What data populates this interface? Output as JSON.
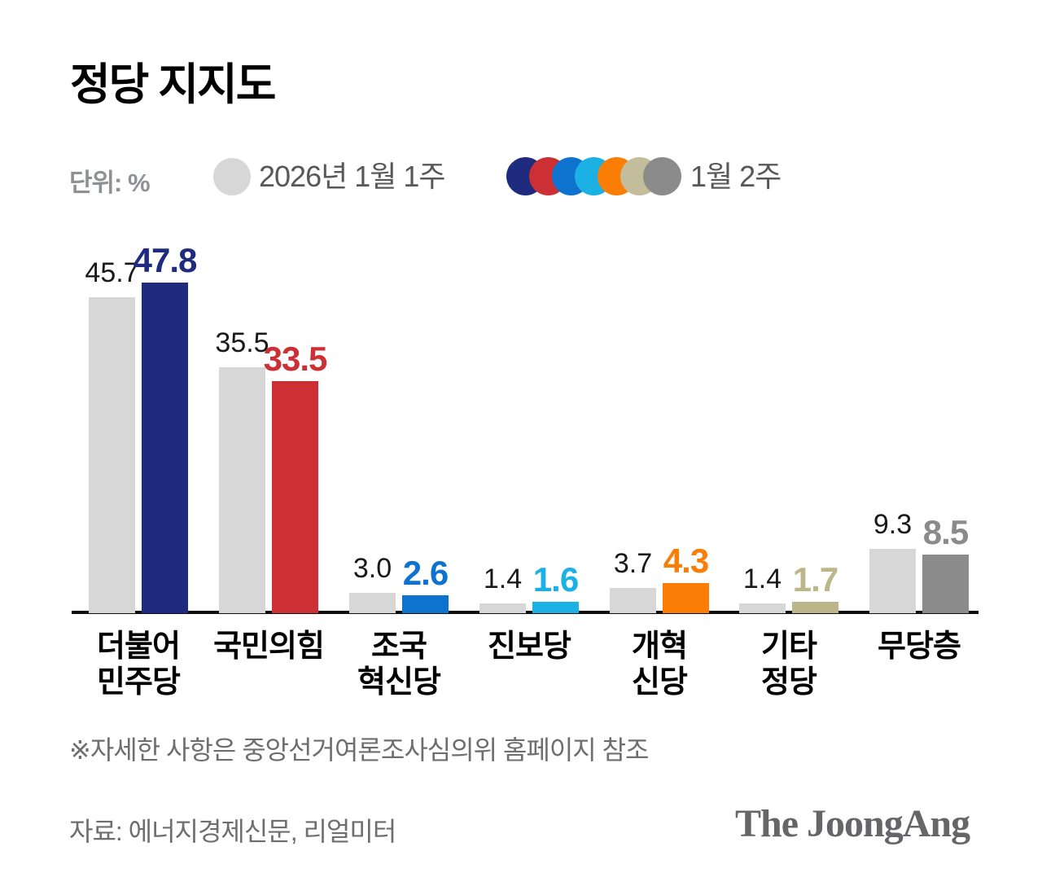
{
  "title": "정당 지지도",
  "unit_label": "단위: %",
  "legend": {
    "week1": {
      "label": "2026년 1월 1주",
      "color": "#d7d7d7"
    },
    "week2": {
      "label": "1월 2주",
      "colors": [
        "#1f2b7e",
        "#cc2f34",
        "#0d73ce",
        "#1cb1e4",
        "#fa7d05",
        "#c3bd9c",
        "#8b8b8b"
      ]
    }
  },
  "chart_data": {
    "type": "bar",
    "title": "정당 지지도",
    "unit": "%",
    "categories": [
      "더불어민주당",
      "국민의힘",
      "조국혁신당",
      "진보당",
      "개혁신당",
      "기타정당",
      "무당층"
    ],
    "category_display": [
      "더불어\n민주당",
      "국민의힘",
      "조국\n혁신당",
      "진보당",
      "개혁\n신당",
      "기타\n정당",
      "무당층"
    ],
    "series": [
      {
        "name": "2026년 1월 1주",
        "values": [
          45.7,
          35.5,
          3.0,
          1.4,
          3.7,
          1.4,
          9.3
        ],
        "color": "#d7d7d7",
        "label_color": "#191919"
      },
      {
        "name": "1월 2주",
        "values": [
          47.8,
          33.5,
          2.6,
          1.6,
          4.3,
          1.7,
          8.5
        ],
        "colors": [
          "#1f2b7e",
          "#cc2f34",
          "#0d73ce",
          "#1cb1e4",
          "#fa7d05",
          "#bcb68a",
          "#8b8b8b"
        ]
      }
    ],
    "ylim": [
      0,
      50
    ],
    "grid": false,
    "legend_position": "top",
    "value_labels": true
  },
  "footnote": "※자세한 사항은 중앙선거여론조사심의위 홈페이지 참조",
  "source": "자료: 에너지경제신문, 리얼미터",
  "logo_text": "The JoongAng"
}
